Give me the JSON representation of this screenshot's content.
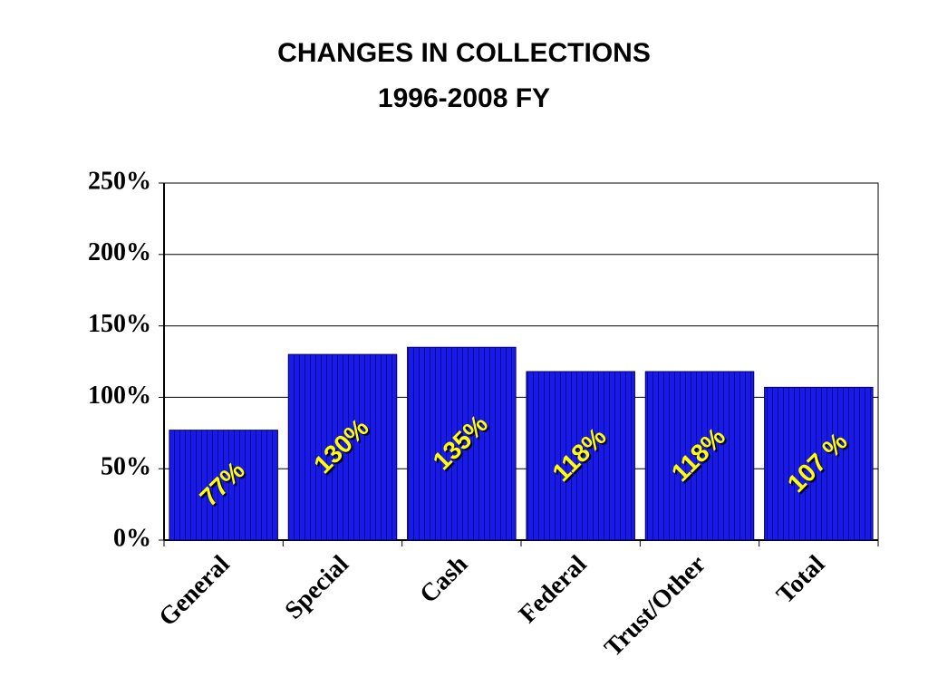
{
  "chart_data": {
    "type": "bar",
    "title": "CHANGES IN COLLECTIONS",
    "subtitle": "1996-2008 FY",
    "categories": [
      "General",
      "Special",
      "Cash",
      "Federal",
      "Trust/Other",
      "Total"
    ],
    "values": [
      77,
      130,
      135,
      118,
      118,
      107
    ],
    "value_labels": [
      "77%",
      "130%",
      "135%",
      "118%",
      "118%",
      "107 %"
    ],
    "color": "#1a1ae6",
    "label_color": "#ffff00",
    "ylim": [
      0,
      250
    ],
    "yticks": [
      {
        "value": 0,
        "label": "0%"
      },
      {
        "value": 50,
        "label": "50%"
      },
      {
        "value": 100,
        "label": "100%"
      },
      {
        "value": 150,
        "label": "150%"
      },
      {
        "value": 200,
        "label": "200%"
      },
      {
        "value": 250,
        "label": "250%"
      }
    ],
    "grid": true
  }
}
